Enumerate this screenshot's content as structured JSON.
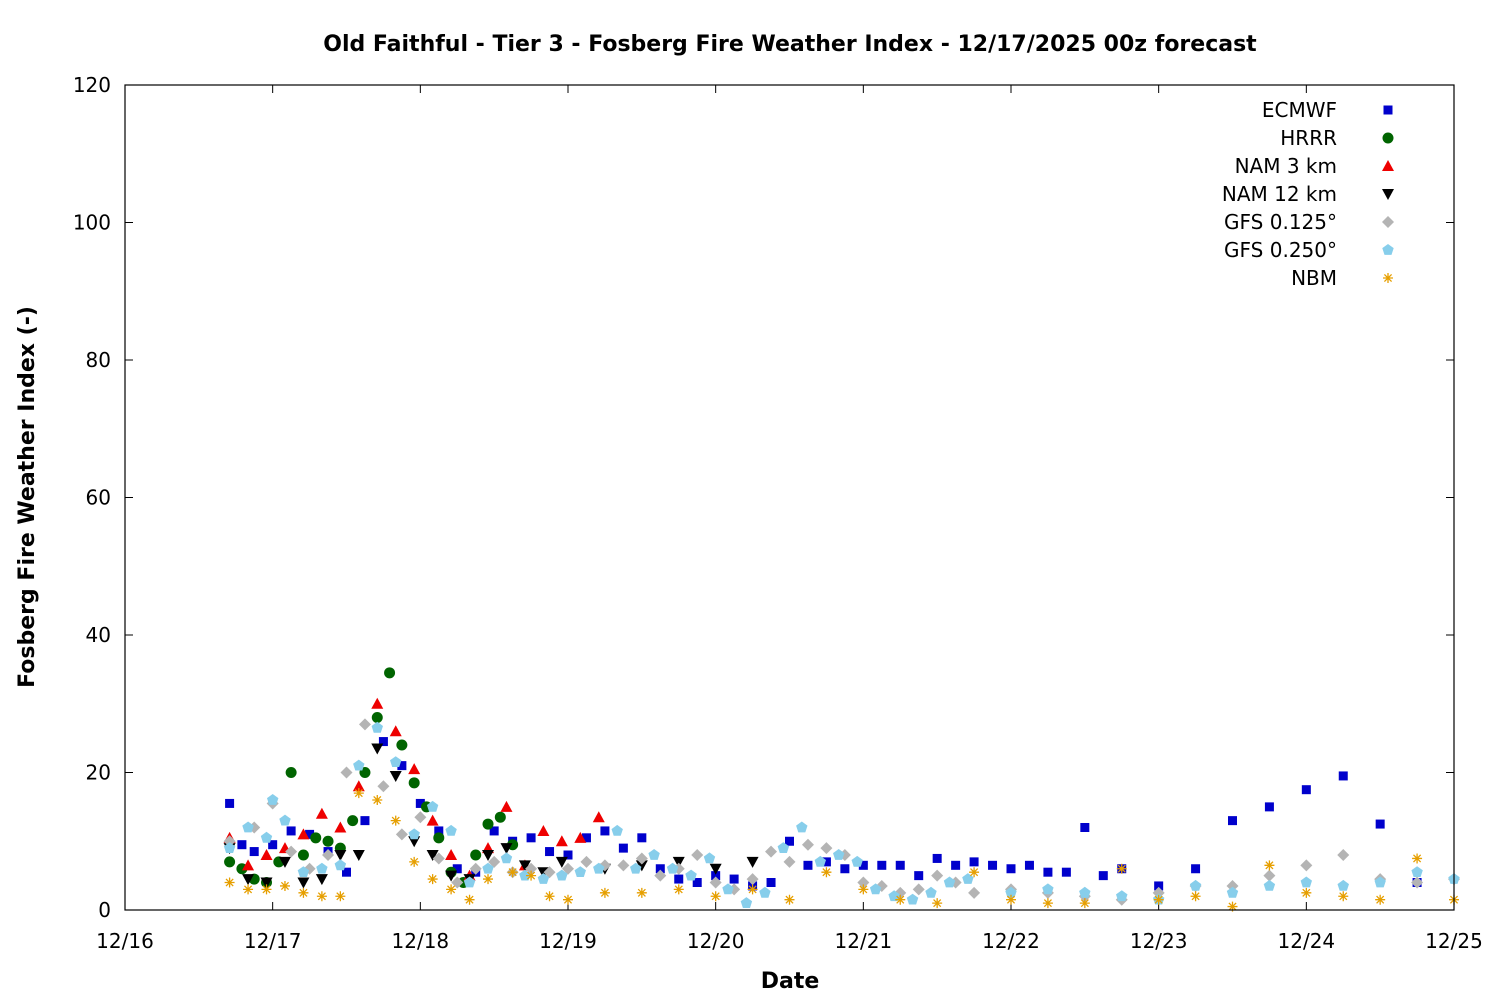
{
  "chart_data": {
    "type": "scatter",
    "title": "Old Faithful - Tier 3 - Fosberg Fire Weather Index - 12/17/2025 00z forecast",
    "xlabel": "Date",
    "ylabel": "Fosberg Fire Weather Index (-)",
    "xlim": [
      "12/16",
      "12/25"
    ],
    "ylim": [
      0,
      120
    ],
    "x_ticks": [
      "12/16",
      "12/17",
      "12/18",
      "12/19",
      "12/20",
      "12/21",
      "12/22",
      "12/23",
      "12/24",
      "12/25"
    ],
    "y_ticks": [
      0,
      20,
      40,
      60,
      80,
      100,
      120
    ],
    "grid": false,
    "legend_position": "top-right",
    "series": [
      {
        "name": "ECMWF",
        "marker": "square",
        "color": "#0000cc",
        "x": [
          "12/16 17:00",
          "12/16 19:00",
          "12/16 21:00",
          "12/17 00:00",
          "12/17 03:00",
          "12/17 06:00",
          "12/17 09:00",
          "12/17 12:00",
          "12/17 15:00",
          "12/17 18:00",
          "12/17 21:00",
          "12/18 00:00",
          "12/18 03:00",
          "12/18 06:00",
          "12/18 09:00",
          "12/18 12:00",
          "12/18 15:00",
          "12/18 18:00",
          "12/18 21:00",
          "12/19 00:00",
          "12/19 03:00",
          "12/19 06:00",
          "12/19 09:00",
          "12/19 12:00",
          "12/19 15:00",
          "12/19 18:00",
          "12/19 21:00",
          "12/20 00:00",
          "12/20 03:00",
          "12/20 06:00",
          "12/20 09:00",
          "12/20 12:00",
          "12/20 15:00",
          "12/20 18:00",
          "12/20 21:00",
          "12/21 00:00",
          "12/21 03:00",
          "12/21 06:00",
          "12/21 09:00",
          "12/21 12:00",
          "12/21 15:00",
          "12/21 18:00",
          "12/21 21:00",
          "12/22 00:00",
          "12/22 03:00",
          "12/22 06:00",
          "12/22 09:00",
          "12/22 12:00",
          "12/22 15:00",
          "12/22 18:00",
          "12/23 00:00",
          "12/23 06:00",
          "12/23 12:00",
          "12/23 18:00",
          "12/24 00:00",
          "12/24 06:00",
          "12/24 12:00",
          "12/24 18:00"
        ],
        "y": [
          15.5,
          9.5,
          8.5,
          9.5,
          11.5,
          11.0,
          8.5,
          5.5,
          13.0,
          24.5,
          21.0,
          15.5,
          11.5,
          6.0,
          5.5,
          11.5,
          10.0,
          10.5,
          8.5,
          8.0,
          10.5,
          11.5,
          9.0,
          10.5,
          6.0,
          4.5,
          4.0,
          5.0,
          4.5,
          3.5,
          4.0,
          10.0,
          6.5,
          7.0,
          6.0,
          6.5,
          6.5,
          6.5,
          5.0,
          7.5,
          6.5,
          7.0,
          6.5,
          6.0,
          6.5,
          5.5,
          5.5,
          12.0,
          5.0,
          6.0,
          3.5,
          6.0,
          13.0,
          15.0,
          17.5,
          19.5,
          12.5,
          4.0
        ]
      },
      {
        "name": "HRRR",
        "marker": "circle",
        "color": "#006400",
        "x": [
          "12/16 17:00",
          "12/16 19:00",
          "12/16 21:00",
          "12/16 23:00",
          "12/17 01:00",
          "12/17 03:00",
          "12/17 05:00",
          "12/17 07:00",
          "12/17 09:00",
          "12/17 11:00",
          "12/17 13:00",
          "12/17 15:00",
          "12/17 17:00",
          "12/17 19:00",
          "12/17 21:00",
          "12/17 23:00",
          "12/18 01:00",
          "12/18 03:00",
          "12/18 05:00",
          "12/18 07:00",
          "12/18 09:00",
          "12/18 11:00",
          "12/18 13:00",
          "12/18 15:00"
        ],
        "y": [
          7.0,
          6.0,
          4.5,
          4.0,
          7.0,
          20.0,
          8.0,
          10.5,
          10.0,
          9.0,
          13.0,
          20.0,
          28.0,
          34.5,
          24.0,
          18.5,
          15.0,
          10.5,
          5.5,
          4.0,
          8.0,
          12.5,
          13.5,
          9.5
        ]
      },
      {
        "name": "NAM 3 km",
        "marker": "triangle-up",
        "color": "#ee0000",
        "x": [
          "12/16 17:00",
          "12/16 20:00",
          "12/16 23:00",
          "12/17 02:00",
          "12/17 05:00",
          "12/17 08:00",
          "12/17 11:00",
          "12/17 14:00",
          "12/17 17:00",
          "12/17 20:00",
          "12/17 23:00",
          "12/18 02:00",
          "12/18 05:00",
          "12/18 08:00",
          "12/18 11:00",
          "12/18 14:00",
          "12/18 17:00",
          "12/18 20:00",
          "12/18 23:00",
          "12/19 02:00",
          "12/19 05:00"
        ],
        "y": [
          10.5,
          6.5,
          8.0,
          9.0,
          11.0,
          14.0,
          12.0,
          18.0,
          30.0,
          26.0,
          20.5,
          13.0,
          8.0,
          5.0,
          9.0,
          15.0,
          6.5,
          11.5,
          10.0,
          10.5,
          13.5
        ]
      },
      {
        "name": "NAM 12 km",
        "marker": "triangle-down",
        "color": "#000000",
        "x": [
          "12/16 17:00",
          "12/16 20:00",
          "12/16 23:00",
          "12/17 02:00",
          "12/17 05:00",
          "12/17 08:00",
          "12/17 11:00",
          "12/17 14:00",
          "12/17 17:00",
          "12/17 20:00",
          "12/17 23:00",
          "12/18 02:00",
          "12/18 05:00",
          "12/18 08:00",
          "12/18 11:00",
          "12/18 14:00",
          "12/18 17:00",
          "12/18 20:00",
          "12/18 23:00",
          "12/19 06:00",
          "12/19 12:00",
          "12/19 18:00",
          "12/20 00:00",
          "12/20 06:00"
        ],
        "y": [
          9.0,
          4.5,
          4.0,
          7.0,
          4.0,
          4.5,
          8.0,
          8.0,
          23.5,
          19.5,
          10.0,
          8.0,
          5.0,
          4.5,
          8.0,
          9.0,
          6.5,
          5.5,
          7.0,
          6.0,
          6.5,
          7.0,
          6.0,
          7.0
        ]
      },
      {
        "name": "GFS 0.125°",
        "marker": "diamond",
        "color": "#b4b4b4",
        "x": [
          "12/16 17:00",
          "12/16 21:00",
          "12/17 00:00",
          "12/17 03:00",
          "12/17 06:00",
          "12/17 09:00",
          "12/17 12:00",
          "12/17 15:00",
          "12/17 18:00",
          "12/17 21:00",
          "12/18 00:00",
          "12/18 03:00",
          "12/18 06:00",
          "12/18 09:00",
          "12/18 12:00",
          "12/18 15:00",
          "12/18 18:00",
          "12/18 21:00",
          "12/19 00:00",
          "12/19 03:00",
          "12/19 06:00",
          "12/19 09:00",
          "12/19 12:00",
          "12/19 15:00",
          "12/19 18:00",
          "12/19 21:00",
          "12/20 00:00",
          "12/20 03:00",
          "12/20 06:00",
          "12/20 09:00",
          "12/20 12:00",
          "12/20 15:00",
          "12/20 18:00",
          "12/20 21:00",
          "12/21 00:00",
          "12/21 03:00",
          "12/21 06:00",
          "12/21 09:00",
          "12/21 12:00",
          "12/21 15:00",
          "12/21 18:00",
          "12/22 00:00",
          "12/22 06:00",
          "12/22 12:00",
          "12/22 18:00",
          "12/23 00:00",
          "12/23 06:00",
          "12/23 12:00",
          "12/23 18:00",
          "12/24 00:00",
          "12/24 06:00",
          "12/24 12:00",
          "12/24 18:00",
          "12/25 00:00"
        ],
        "y": [
          10.0,
          12.0,
          15.5,
          8.5,
          6.0,
          8.0,
          20.0,
          27.0,
          18.0,
          11.0,
          13.5,
          7.5,
          4.0,
          6.0,
          7.0,
          5.5,
          6.0,
          5.5,
          6.0,
          7.0,
          6.5,
          6.5,
          7.5,
          5.0,
          6.0,
          8.0,
          4.0,
          3.0,
          4.5,
          8.5,
          7.0,
          9.5,
          9.0,
          8.0,
          4.0,
          3.5,
          2.5,
          3.0,
          5.0,
          4.0,
          2.5,
          3.0,
          2.5,
          2.0,
          1.5,
          2.5,
          3.5,
          3.5,
          5.0,
          6.5,
          8.0,
          4.5,
          4.0,
          4.5
        ]
      },
      {
        "name": "GFS 0.250°",
        "marker": "pentagon",
        "color": "#87ceeb",
        "x": [
          "12/16 17:00",
          "12/16 20:00",
          "12/16 23:00",
          "12/17 00:00",
          "12/17 02:00",
          "12/17 05:00",
          "12/17 08:00",
          "12/17 11:00",
          "12/17 14:00",
          "12/17 17:00",
          "12/17 20:00",
          "12/17 23:00",
          "12/18 02:00",
          "12/18 05:00",
          "12/18 08:00",
          "12/18 11:00",
          "12/18 14:00",
          "12/18 17:00",
          "12/18 20:00",
          "12/18 23:00",
          "12/19 02:00",
          "12/19 05:00",
          "12/19 08:00",
          "12/19 11:00",
          "12/19 14:00",
          "12/19 17:00",
          "12/19 20:00",
          "12/19 23:00",
          "12/20 02:00",
          "12/20 05:00",
          "12/20 08:00",
          "12/20 11:00",
          "12/20 14:00",
          "12/20 17:00",
          "12/20 20:00",
          "12/20 23:00",
          "12/21 02:00",
          "12/21 05:00",
          "12/21 08:00",
          "12/21 11:00",
          "12/21 14:00",
          "12/21 17:00",
          "12/22 00:00",
          "12/22 06:00",
          "12/22 12:00",
          "12/22 18:00",
          "12/23 00:00",
          "12/23 06:00",
          "12/23 12:00",
          "12/23 18:00",
          "12/24 00:00",
          "12/24 06:00",
          "12/24 12:00",
          "12/24 18:00",
          "12/25 00:00"
        ],
        "y": [
          9.0,
          12.0,
          10.5,
          16.0,
          13.0,
          5.5,
          6.0,
          6.5,
          21.0,
          26.5,
          21.5,
          11.0,
          15.0,
          11.5,
          4.0,
          6.0,
          7.5,
          5.0,
          4.5,
          5.0,
          5.5,
          6.0,
          11.5,
          6.0,
          8.0,
          6.0,
          5.0,
          7.5,
          3.0,
          1.0,
          2.5,
          9.0,
          12.0,
          7.0,
          8.0,
          7.0,
          3.0,
          2.0,
          1.5,
          2.5,
          4.0,
          4.5,
          2.5,
          3.0,
          2.5,
          2.0,
          1.5,
          3.5,
          2.5,
          3.5,
          4.0,
          3.5,
          4.0,
          5.5,
          4.5
        ]
      },
      {
        "name": "NBM",
        "marker": "asterisk",
        "color": "#e69f00",
        "x": [
          "12/16 17:00",
          "12/16 20:00",
          "12/16 23:00",
          "12/17 02:00",
          "12/17 05:00",
          "12/17 08:00",
          "12/17 11:00",
          "12/17 14:00",
          "12/17 17:00",
          "12/17 20:00",
          "12/17 23:00",
          "12/18 02:00",
          "12/18 05:00",
          "12/18 08:00",
          "12/18 11:00",
          "12/18 15:00",
          "12/18 18:00",
          "12/18 21:00",
          "12/19 00:00",
          "12/19 06:00",
          "12/19 12:00",
          "12/19 18:00",
          "12/20 00:00",
          "12/20 06:00",
          "12/20 12:00",
          "12/20 18:00",
          "12/21 00:00",
          "12/21 06:00",
          "12/21 12:00",
          "12/21 18:00",
          "12/22 00:00",
          "12/22 06:00",
          "12/22 12:00",
          "12/22 18:00",
          "12/23 00:00",
          "12/23 06:00",
          "12/23 12:00",
          "12/23 18:00",
          "12/24 00:00",
          "12/24 06:00",
          "12/24 12:00",
          "12/24 18:00",
          "12/25 00:00"
        ],
        "y": [
          4.0,
          3.0,
          3.0,
          3.5,
          2.5,
          2.0,
          2.0,
          17.0,
          16.0,
          13.0,
          7.0,
          4.5,
          3.0,
          1.5,
          4.5,
          5.5,
          5.0,
          2.0,
          1.5,
          2.5,
          2.5,
          3.0,
          2.0,
          3.0,
          1.5,
          5.5,
          3.0,
          1.5,
          1.0,
          5.5,
          1.5,
          1.0,
          1.0,
          6.0,
          1.5,
          2.0,
          0.5,
          6.5,
          2.5,
          2.0,
          1.5,
          7.5,
          1.5
        ]
      }
    ]
  }
}
